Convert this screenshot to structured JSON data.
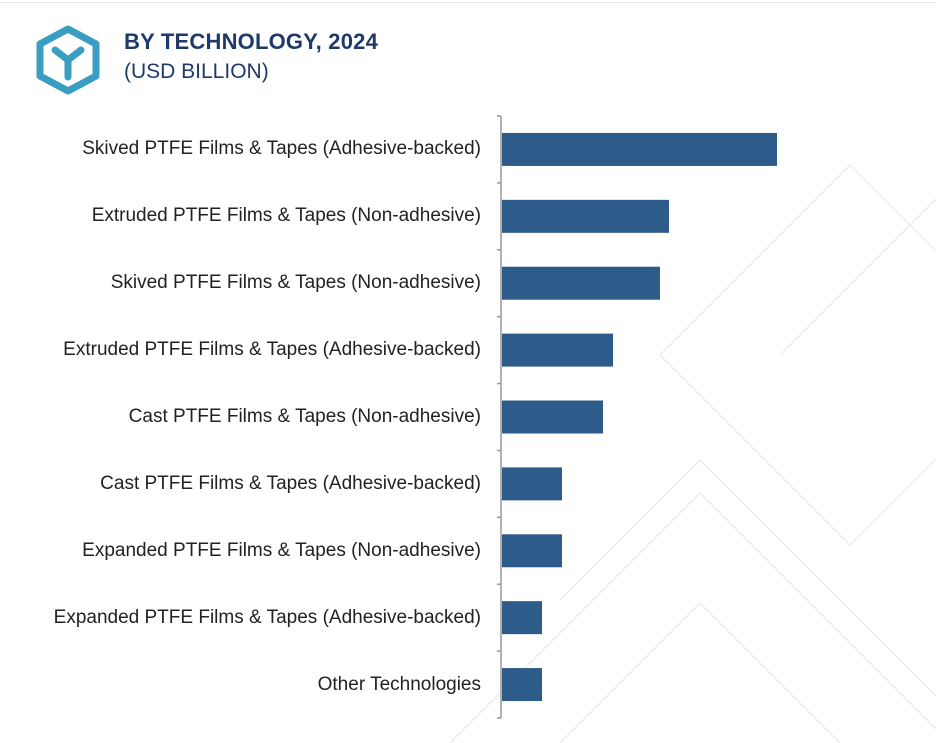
{
  "header": {
    "title": "BY TECHNOLOGY, 2024",
    "subtitle": "(USD BILLION)",
    "logo_icon": "brand-hexagon-y-icon"
  },
  "colors": {
    "bar": "#2d5b8a",
    "title": "#1f3a68",
    "logo": "#3a9ec2",
    "axis": "#999999",
    "watermark": "#ececec"
  },
  "chart_data": {
    "type": "bar",
    "orientation": "horizontal",
    "title": "BY TECHNOLOGY, 2024",
    "subtitle": "(USD BILLION)",
    "categories": [
      "Skived PTFE Films & Tapes (Adhesive-backed)",
      "Extruded PTFE Films & Tapes (Non-adhesive)",
      "Skived PTFE Films & Tapes (Non-adhesive)",
      "Extruded PTFE Films & Tapes (Adhesive-backed)",
      "Cast PTFE Films & Tapes (Non-adhesive)",
      "Cast PTFE Films & Tapes (Adhesive-backed)",
      "Expanded PTFE Films & Tapes (Non-adhesive)",
      "Expanded PTFE Films & Tapes (Adhesive-backed)",
      "Other Technologies"
    ],
    "values": [
      2.75,
      1.67,
      1.58,
      1.11,
      1.01,
      0.6,
      0.6,
      0.4,
      0.4
    ],
    "xlim": [
      0,
      3.5
    ],
    "grid": false,
    "legend": "none",
    "value_axis_shown": false
  }
}
